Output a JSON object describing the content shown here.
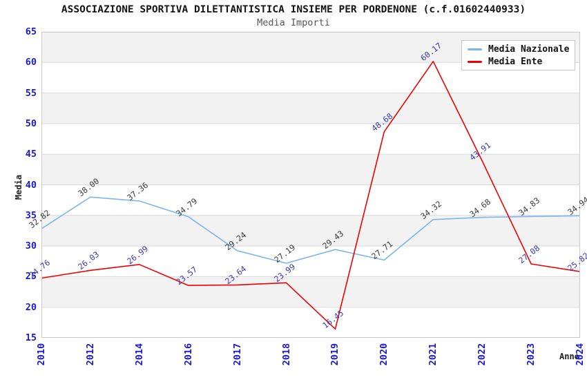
{
  "chart_data": {
    "type": "line",
    "title": "ASSOCIAZIONE SPORTIVA DILETTANTISTICA INSIEME PER PORDENONE (c.f.01602440933)",
    "subtitle": "Media Importi",
    "xlabel": "Anno",
    "ylabel": "Media",
    "ylim": [
      15,
      65
    ],
    "y_ticks": [
      65,
      60,
      55,
      50,
      45,
      40,
      35,
      30,
      25,
      20,
      15
    ],
    "categories": [
      "2010",
      "2012",
      "2014",
      "2016",
      "2017",
      "2018",
      "2019",
      "2020",
      "2021",
      "2022",
      "2023",
      "2024"
    ],
    "series": [
      {
        "name": "Media Nazionale",
        "color": "#7cb5ec",
        "label_color": "#3a3a3a",
        "values": [
          32.82,
          38.0,
          37.36,
          34.79,
          29.24,
          27.19,
          29.43,
          27.71,
          34.32,
          34.68,
          34.83,
          34.94
        ]
      },
      {
        "name": "Media Ente",
        "color": "#ee0000",
        "label_color": "#3a3aae",
        "values": [
          24.76,
          26.03,
          26.99,
          23.57,
          23.64,
          23.99,
          16.45,
          48.68,
          60.17,
          43.91,
          27.08,
          25.82
        ]
      }
    ],
    "legend_position": "top-right",
    "grid": true,
    "colors": {
      "axis_tick": "#1a1acc",
      "grid_line": "#d9d9d9",
      "band_fill": "#f2f2f2",
      "plot_border": "#c9c9c9",
      "background": "#ffffff"
    }
  }
}
